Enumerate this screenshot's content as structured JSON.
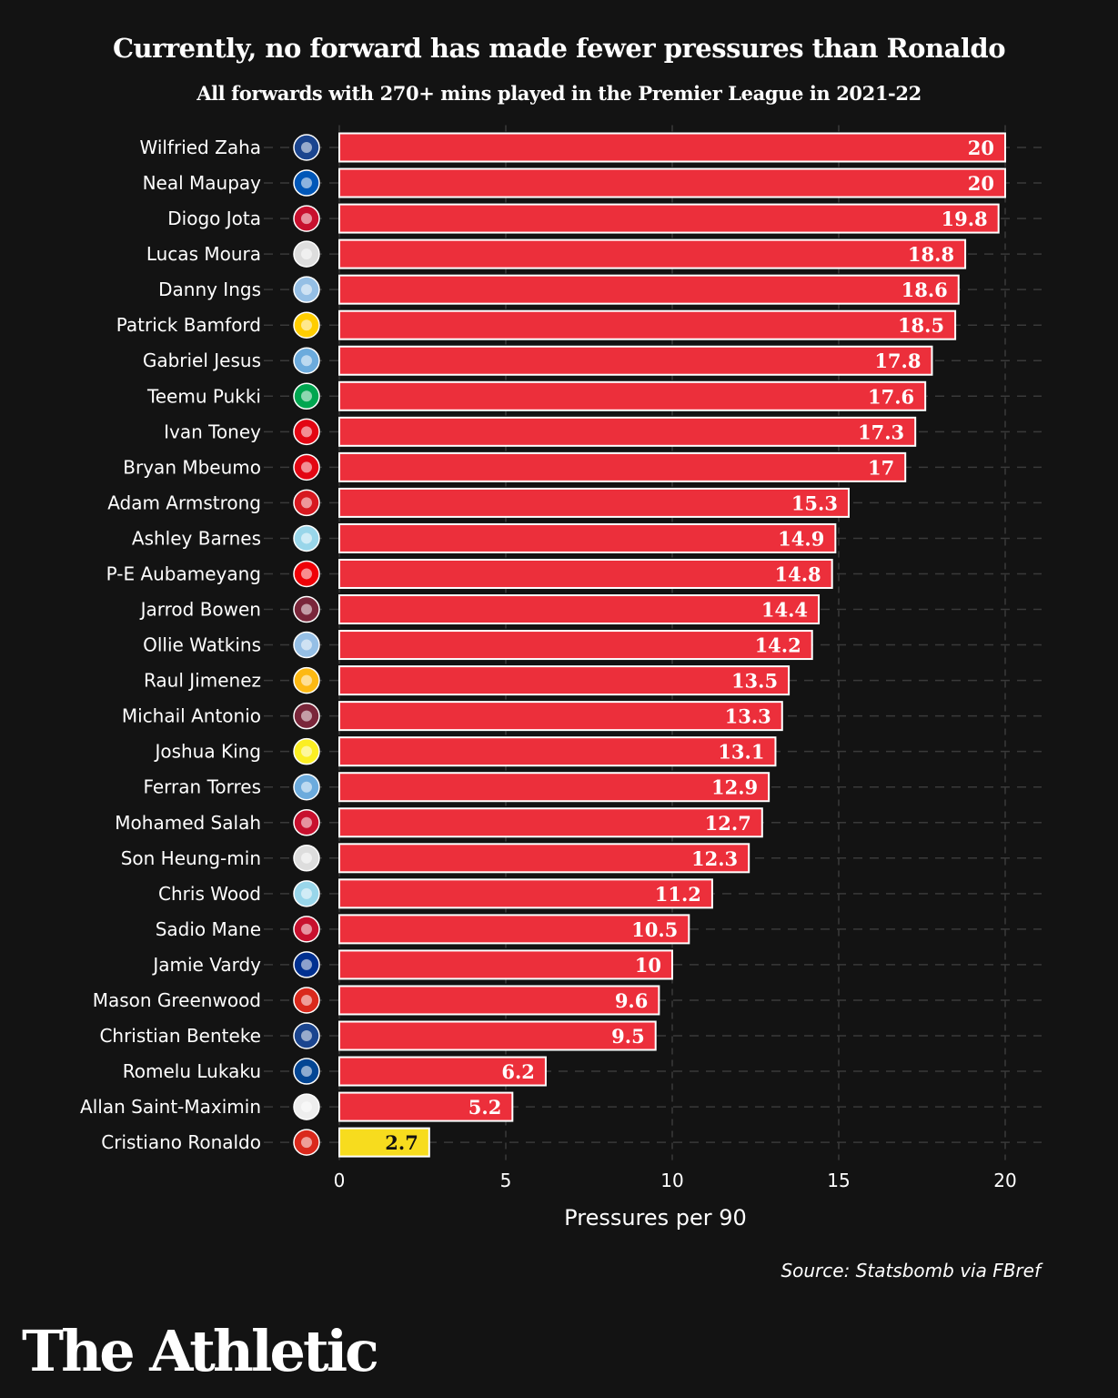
{
  "chart_data": {
    "type": "bar",
    "orientation": "horizontal",
    "title": "Currently, no forward has made fewer pressures than Ronaldo",
    "subtitle": "All forwards with 270+ mins played in the Premier League in 2021-22",
    "xlabel": "Pressures per 90",
    "xlim": [
      0,
      20
    ],
    "xticks": [
      0,
      5,
      10,
      15,
      20
    ],
    "grid": true,
    "source": "Source: Statsbomb via FBref",
    "colors": {
      "default": "#EC2F3B",
      "highlight": "#F7DC1E",
      "background": "#131313",
      "border": "#FFFFFF"
    },
    "categories": [
      "Wilfried Zaha",
      "Neal Maupay",
      "Diogo Jota",
      "Lucas Moura",
      "Danny Ings",
      "Patrick Bamford",
      "Gabriel Jesus",
      "Teemu Pukki",
      "Ivan Toney",
      "Bryan Mbeumo",
      "Adam Armstrong",
      "Ashley Barnes",
      "P-E Aubameyang",
      "Jarrod Bowen",
      "Ollie Watkins",
      "Raul Jimenez",
      "Michail Antonio",
      "Joshua King",
      "Ferran Torres",
      "Mohamed Salah",
      "Son Heung-min",
      "Chris Wood",
      "Sadio Mane",
      "Jamie Vardy",
      "Mason Greenwood",
      "Christian Benteke",
      "Romelu Lukaku",
      "Allan Saint-Maximin",
      "Cristiano Ronaldo"
    ],
    "values": [
      20,
      20,
      19.8,
      18.8,
      18.6,
      18.5,
      17.8,
      17.6,
      17.3,
      17,
      15.3,
      14.9,
      14.8,
      14.4,
      14.2,
      13.5,
      13.3,
      13.1,
      12.9,
      12.7,
      12.3,
      11.2,
      10.5,
      10,
      9.6,
      9.5,
      6.2,
      5.2,
      2.7
    ],
    "highlight": "Cristiano Ronaldo",
    "club_icons": [
      "crystal-palace-crest",
      "brighton-crest",
      "liverpool-crest",
      "tottenham-crest",
      "aston-villa-crest",
      "leeds-crest",
      "man-city-crest",
      "norwich-crest",
      "brentford-crest",
      "brentford-crest",
      "southampton-crest",
      "burnley-crest",
      "arsenal-crest",
      "west-ham-crest",
      "aston-villa-crest",
      "wolves-crest",
      "west-ham-crest",
      "watford-crest",
      "man-city-crest",
      "liverpool-crest",
      "tottenham-crest",
      "burnley-crest",
      "liverpool-crest",
      "leicester-crest",
      "man-utd-crest",
      "crystal-palace-crest",
      "chelsea-crest",
      "newcastle-crest",
      "man-utd-crest"
    ],
    "club_colors": {
      "crystal-palace-crest": "#1B458F",
      "brighton-crest": "#0057B8",
      "liverpool-crest": "#C8102E",
      "tottenham-crest": "#DDDDDD",
      "aston-villa-crest": "#95BFE5",
      "leeds-crest": "#FFCD00",
      "man-city-crest": "#6CABDD",
      "norwich-crest": "#00A650",
      "brentford-crest": "#E30613",
      "southampton-crest": "#D71920",
      "burnley-crest": "#99D6EA",
      "arsenal-crest": "#EF0107",
      "west-ham-crest": "#7A263A",
      "wolves-crest": "#FDB913",
      "watford-crest": "#FBEE23",
      "leicester-crest": "#003090",
      "man-utd-crest": "#DA291C",
      "chelsea-crest": "#034694",
      "newcastle-crest": "#EEEEEE"
    }
  },
  "branding": {
    "logo": "The Athletic"
  }
}
